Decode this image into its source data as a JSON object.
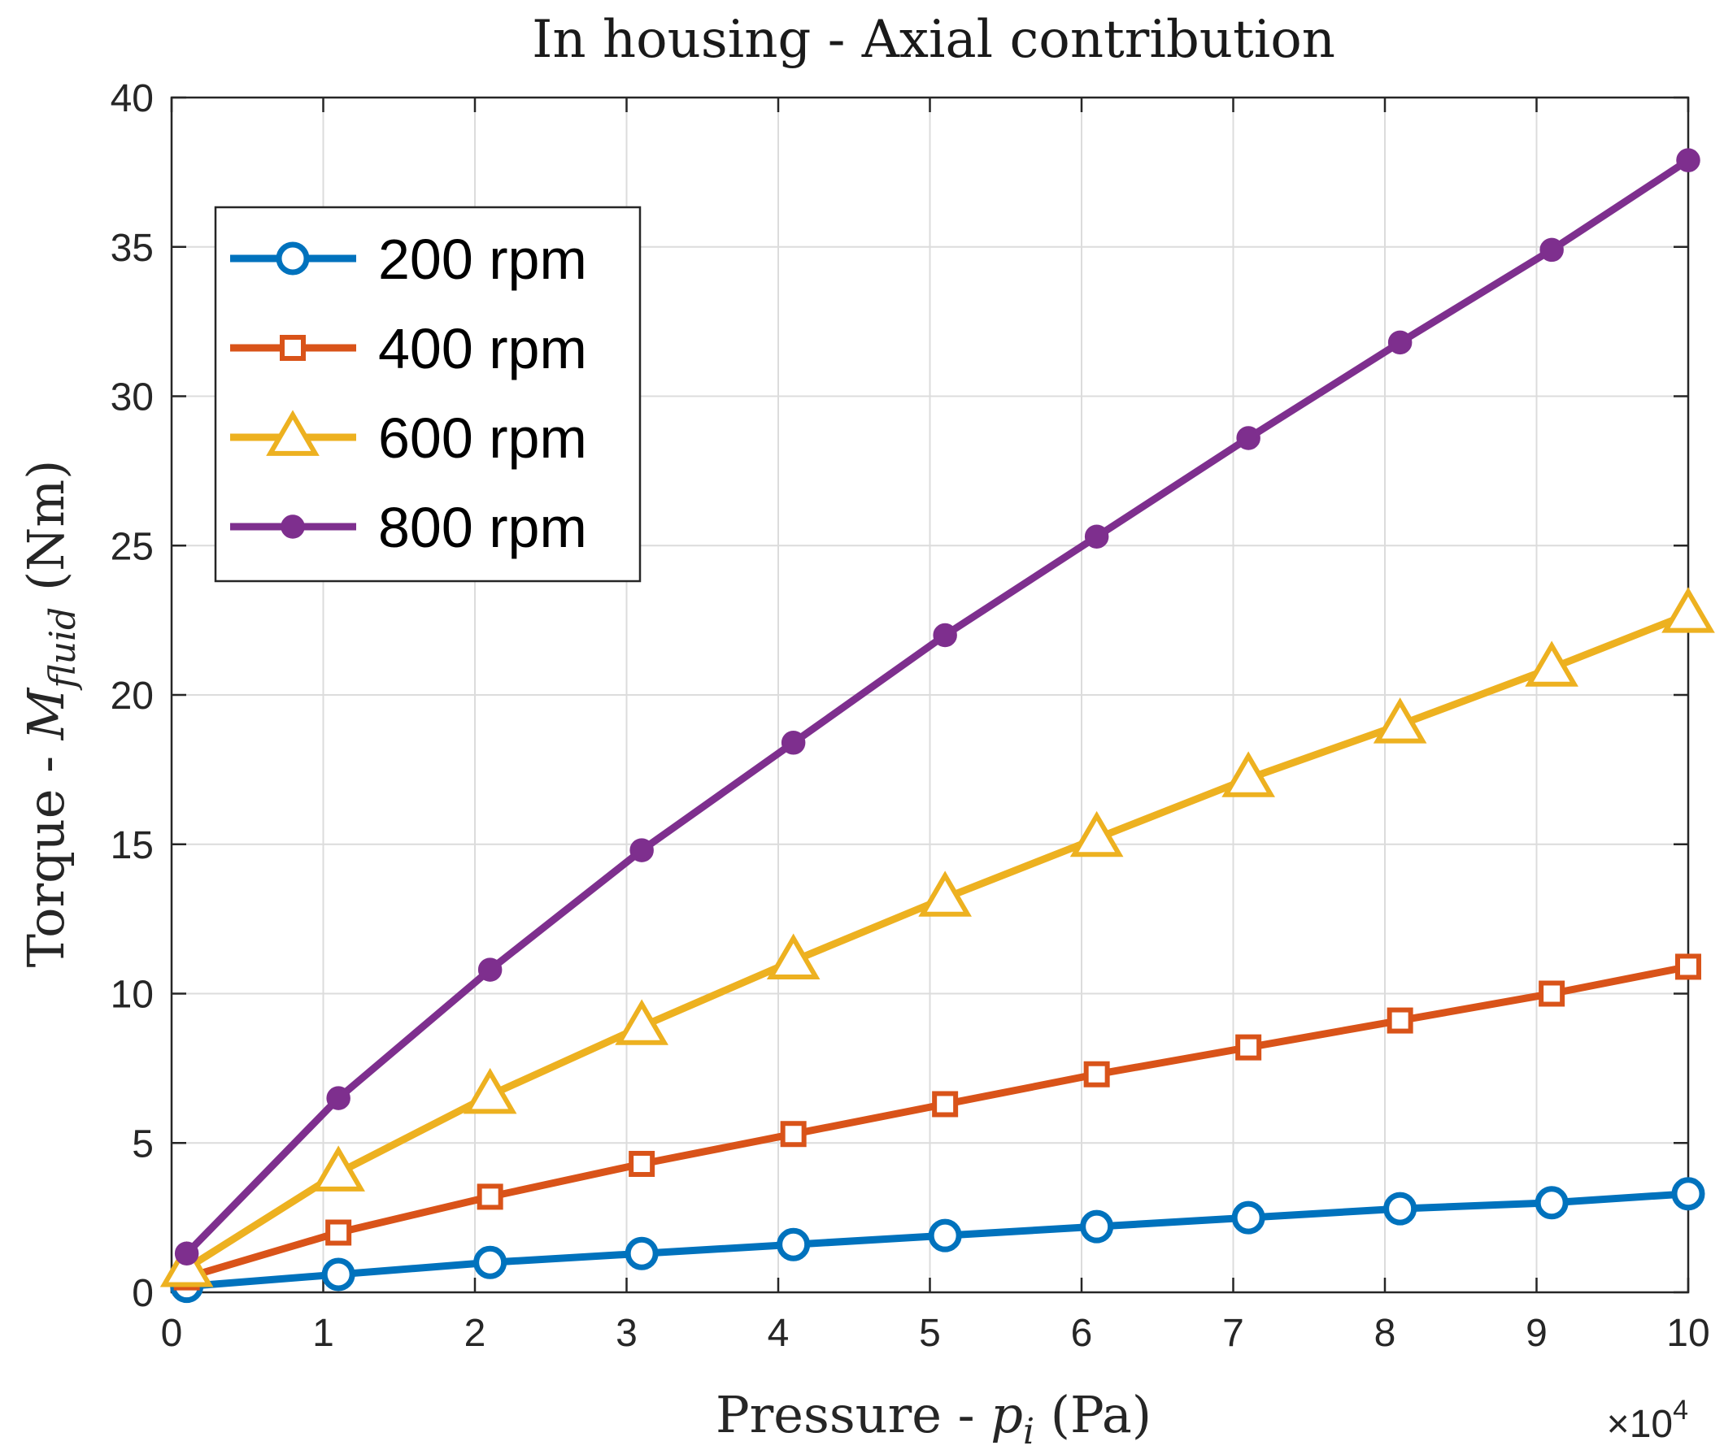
{
  "chart_data": {
    "type": "line",
    "title": "In housing - Axial contribution",
    "xlabel": "Pressure - p_i (Pa)",
    "xlabel_parts": {
      "pre": "Pressure - ",
      "var": "p",
      "sub": "i",
      "post": " (Pa)"
    },
    "ylabel": "Torque - M_fluid (Nm)",
    "ylabel_parts": {
      "pre": "Torque - ",
      "var": "M",
      "sub": "fluid",
      "post": " (Nm)"
    },
    "x_multiplier": "×10",
    "x_multiplier_exp": "4",
    "xlim": [
      0,
      10
    ],
    "ylim": [
      0,
      40
    ],
    "xticks": [
      "0",
      "1",
      "2",
      "3",
      "4",
      "5",
      "6",
      "7",
      "8",
      "9",
      "10"
    ],
    "yticks": [
      "0",
      "5",
      "10",
      "15",
      "20",
      "25",
      "30",
      "35",
      "40"
    ],
    "grid": true,
    "legend_position": "upper-left",
    "x": [
      0.1,
      1.1,
      2.1,
      3.1,
      4.1,
      5.1,
      6.1,
      7.1,
      8.1,
      9.1,
      10
    ],
    "series": [
      {
        "name": "200 rpm",
        "color": "#0072BD",
        "marker": "circle",
        "values": [
          0.2,
          0.6,
          1.0,
          1.3,
          1.6,
          1.9,
          2.2,
          2.5,
          2.8,
          3.0,
          3.3
        ]
      },
      {
        "name": "400 rpm",
        "color": "#D95319",
        "marker": "square",
        "values": [
          0.5,
          2.0,
          3.2,
          4.3,
          5.3,
          6.3,
          7.3,
          8.2,
          9.1,
          10.0,
          10.9
        ]
      },
      {
        "name": "600 rpm",
        "color": "#EDB120",
        "marker": "triangle",
        "values": [
          0.8,
          4.0,
          6.6,
          8.9,
          11.1,
          13.2,
          15.2,
          17.2,
          19.0,
          20.9,
          22.7
        ]
      },
      {
        "name": "800 rpm",
        "color": "#7E2F8E",
        "marker": "dot",
        "values": [
          1.3,
          6.5,
          10.8,
          14.8,
          18.4,
          22.0,
          25.3,
          28.6,
          31.8,
          34.9,
          37.9
        ]
      }
    ]
  }
}
